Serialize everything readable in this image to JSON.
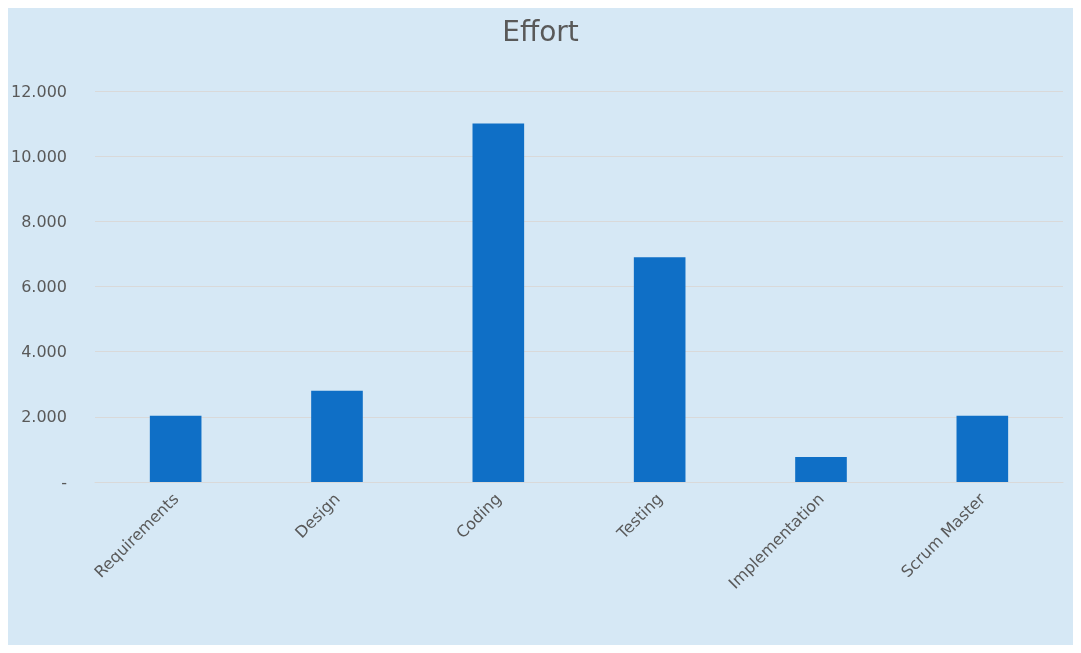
{
  "chart_data": {
    "type": "bar",
    "title": "Effort",
    "categories": [
      "Requirements",
      "Design",
      "Coding",
      "Testing",
      "Implementation",
      "Scrum Master"
    ],
    "values": [
      2030,
      2800,
      11000,
      6900,
      770,
      2030
    ],
    "color": "#0f6fc6",
    "ylim": [
      0,
      12000
    ],
    "yticks": [
      {
        "value": 0,
        "label": "-"
      },
      {
        "value": 2000,
        "label": "2.000"
      },
      {
        "value": 4000,
        "label": "4.000"
      },
      {
        "value": 6000,
        "label": "6.000"
      },
      {
        "value": 8000,
        "label": "8.000"
      },
      {
        "value": 10000,
        "label": "10.000"
      },
      {
        "value": 12000,
        "label": "12.000"
      }
    ],
    "grid": "y"
  }
}
